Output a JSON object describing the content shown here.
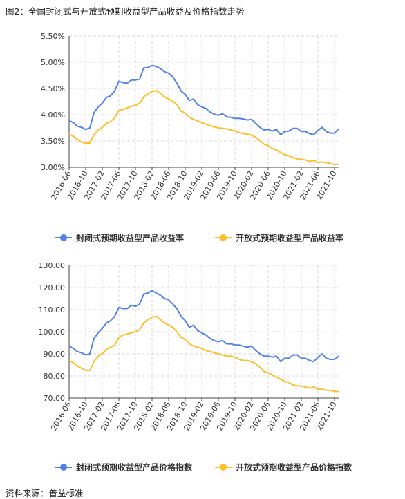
{
  "figure": {
    "title": "图2：全国封闭式与开放式预期收益型产品收益及价格指数走势",
    "source": "资料来源：普益标准"
  },
  "colors": {
    "series1": "#4f81e8",
    "series2": "#fcbf2a",
    "grid": "#d9d9d9",
    "axis": "#444444"
  },
  "chart_data": [
    {
      "type": "line",
      "x": [
        "2016-06",
        "2016-07",
        "2016-08",
        "2016-09",
        "2016-10",
        "2016-11",
        "2016-12",
        "2017-01",
        "2017-02",
        "2017-03",
        "2017-04",
        "2017-05",
        "2017-06",
        "2017-07",
        "2017-08",
        "2017-09",
        "2017-10",
        "2017-11",
        "2017-12",
        "2018-01",
        "2018-02",
        "2018-03",
        "2018-04",
        "2018-05",
        "2018-06",
        "2018-07",
        "2018-08",
        "2018-09",
        "2018-10",
        "2018-11",
        "2018-12",
        "2019-01",
        "2019-02",
        "2019-03",
        "2019-04",
        "2019-05",
        "2019-06",
        "2019-07",
        "2019-08",
        "2019-09",
        "2019-10",
        "2019-11",
        "2019-12",
        "2020-01",
        "2020-02",
        "2020-03",
        "2020-04",
        "2020-05",
        "2020-06",
        "2020-07",
        "2020-08",
        "2020-09",
        "2020-10",
        "2020-11",
        "2020-12",
        "2021-01",
        "2021-02",
        "2021-03",
        "2021-04",
        "2021-05",
        "2021-06",
        "2021-07",
        "2021-08",
        "2021-09",
        "2021-10",
        "2021-11"
      ],
      "tick_labels": [
        "2016-06",
        "2016-10",
        "2017-02",
        "2017-06",
        "2017-10",
        "2018-02",
        "2018-06",
        "2018-10",
        "2019-02",
        "2019-06",
        "2019-10",
        "2020-02",
        "2020-06",
        "2020-10",
        "2021-02",
        "2021-06",
        "2021-10"
      ],
      "series": [
        {
          "name": "封闭式预期收益型产品收益率",
          "values": [
            3.89,
            3.85,
            3.78,
            3.76,
            3.72,
            3.75,
            4.04,
            4.15,
            4.22,
            4.33,
            4.36,
            4.45,
            4.64,
            4.61,
            4.6,
            4.66,
            4.66,
            4.68,
            4.89,
            4.9,
            4.94,
            4.92,
            4.88,
            4.82,
            4.79,
            4.72,
            4.6,
            4.45,
            4.39,
            4.27,
            4.3,
            4.19,
            4.15,
            4.12,
            4.05,
            4.01,
            3.99,
            4.02,
            3.96,
            3.95,
            3.93,
            3.93,
            3.92,
            3.9,
            3.91,
            3.84,
            3.76,
            3.71,
            3.72,
            3.69,
            3.72,
            3.62,
            3.68,
            3.69,
            3.74,
            3.74,
            3.68,
            3.68,
            3.64,
            3.62,
            3.7,
            3.76,
            3.68,
            3.65,
            3.65,
            3.73
          ]
        },
        {
          "name": "开放式预期收益型产品收益率",
          "values": [
            3.63,
            3.59,
            3.53,
            3.48,
            3.46,
            3.46,
            3.62,
            3.71,
            3.76,
            3.84,
            3.87,
            3.94,
            4.08,
            4.1,
            4.13,
            4.16,
            4.18,
            4.22,
            4.34,
            4.4,
            4.44,
            4.46,
            4.41,
            4.34,
            4.3,
            4.26,
            4.19,
            4.07,
            4.03,
            3.95,
            3.91,
            3.88,
            3.85,
            3.82,
            3.79,
            3.77,
            3.75,
            3.74,
            3.73,
            3.71,
            3.69,
            3.66,
            3.64,
            3.63,
            3.61,
            3.57,
            3.51,
            3.44,
            3.41,
            3.36,
            3.33,
            3.28,
            3.24,
            3.22,
            3.18,
            3.16,
            3.15,
            3.14,
            3.11,
            3.13,
            3.09,
            3.1,
            3.09,
            3.07,
            3.05,
            3.06
          ]
        }
      ],
      "ylim": [
        3.0,
        5.5
      ],
      "yticks": [
        3.0,
        3.5,
        4.0,
        4.5,
        5.0,
        5.5
      ],
      "ytick_labels": [
        "3.00%",
        "3.50%",
        "4.00%",
        "4.50%",
        "5.00%",
        "5.50%"
      ],
      "grid": true,
      "legend": "bottom"
    },
    {
      "type": "line",
      "x": [
        "2016-06",
        "2016-07",
        "2016-08",
        "2016-09",
        "2016-10",
        "2016-11",
        "2016-12",
        "2017-01",
        "2017-02",
        "2017-03",
        "2017-04",
        "2017-05",
        "2017-06",
        "2017-07",
        "2017-08",
        "2017-09",
        "2017-10",
        "2017-11",
        "2017-12",
        "2018-01",
        "2018-02",
        "2018-03",
        "2018-04",
        "2018-05",
        "2018-06",
        "2018-07",
        "2018-08",
        "2018-09",
        "2018-10",
        "2018-11",
        "2018-12",
        "2019-01",
        "2019-02",
        "2019-03",
        "2019-04",
        "2019-05",
        "2019-06",
        "2019-07",
        "2019-08",
        "2019-09",
        "2019-10",
        "2019-11",
        "2019-12",
        "2020-01",
        "2020-02",
        "2020-03",
        "2020-04",
        "2020-05",
        "2020-06",
        "2020-07",
        "2020-08",
        "2020-09",
        "2020-10",
        "2020-11",
        "2020-12",
        "2021-01",
        "2021-02",
        "2021-03",
        "2021-04",
        "2021-05",
        "2021-06",
        "2021-07",
        "2021-08",
        "2021-09",
        "2021-10",
        "2021-11"
      ],
      "tick_labels": [
        "2016-06",
        "2016-10",
        "2017-02",
        "2017-06",
        "2017-10",
        "2018-02",
        "2018-06",
        "2018-10",
        "2019-02",
        "2019-06",
        "2019-10",
        "2020-02",
        "2020-06",
        "2020-10",
        "2021-02",
        "2021-06",
        "2021-10"
      ],
      "series": [
        {
          "name": "封闭式预期收益型产品价格指数",
          "values": [
            93.5,
            92.5,
            91.0,
            90.5,
            89.5,
            90.0,
            97.0,
            99.5,
            101.5,
            104.0,
            105.0,
            107.0,
            111.0,
            110.5,
            110.5,
            112.0,
            111.5,
            112.5,
            117.0,
            117.5,
            118.5,
            117.5,
            116.5,
            115.0,
            114.5,
            112.5,
            110.5,
            107.0,
            105.0,
            102.0,
            103.0,
            100.5,
            99.5,
            98.5,
            97.0,
            96.0,
            95.5,
            96.0,
            94.5,
            94.5,
            94.0,
            94.0,
            93.5,
            93.0,
            93.5,
            91.5,
            90.0,
            89.0,
            89.0,
            88.5,
            89.0,
            86.5,
            88.0,
            88.0,
            89.5,
            89.5,
            88.0,
            88.0,
            87.0,
            86.5,
            88.5,
            90.0,
            88.0,
            87.5,
            87.5,
            89.0
          ]
        },
        {
          "name": "开放式预期收益型产品价格指数",
          "values": [
            87.0,
            86.0,
            84.5,
            83.5,
            82.5,
            82.5,
            86.5,
            89.0,
            90.0,
            92.0,
            93.0,
            94.0,
            97.5,
            98.5,
            99.0,
            99.5,
            100.0,
            101.0,
            104.0,
            105.5,
            106.5,
            107.0,
            105.5,
            104.0,
            103.0,
            102.0,
            100.0,
            97.5,
            96.5,
            94.5,
            93.5,
            93.0,
            92.5,
            91.5,
            91.0,
            90.5,
            90.0,
            89.5,
            89.0,
            89.0,
            88.5,
            87.5,
            87.0,
            87.0,
            86.5,
            85.5,
            84.0,
            82.0,
            81.5,
            80.5,
            79.5,
            78.5,
            77.5,
            77.0,
            76.0,
            75.5,
            75.5,
            75.0,
            74.5,
            75.0,
            74.0,
            74.0,
            73.5,
            73.5,
            73.0,
            73.0
          ]
        }
      ],
      "ylim": [
        70,
        130
      ],
      "yticks": [
        70,
        80,
        90,
        100,
        110,
        120,
        130
      ],
      "ytick_labels": [
        "70.00",
        "80.00",
        "90.00",
        "100.00",
        "110.00",
        "120.00",
        "130.00"
      ],
      "grid": true,
      "legend": "bottom"
    }
  ]
}
